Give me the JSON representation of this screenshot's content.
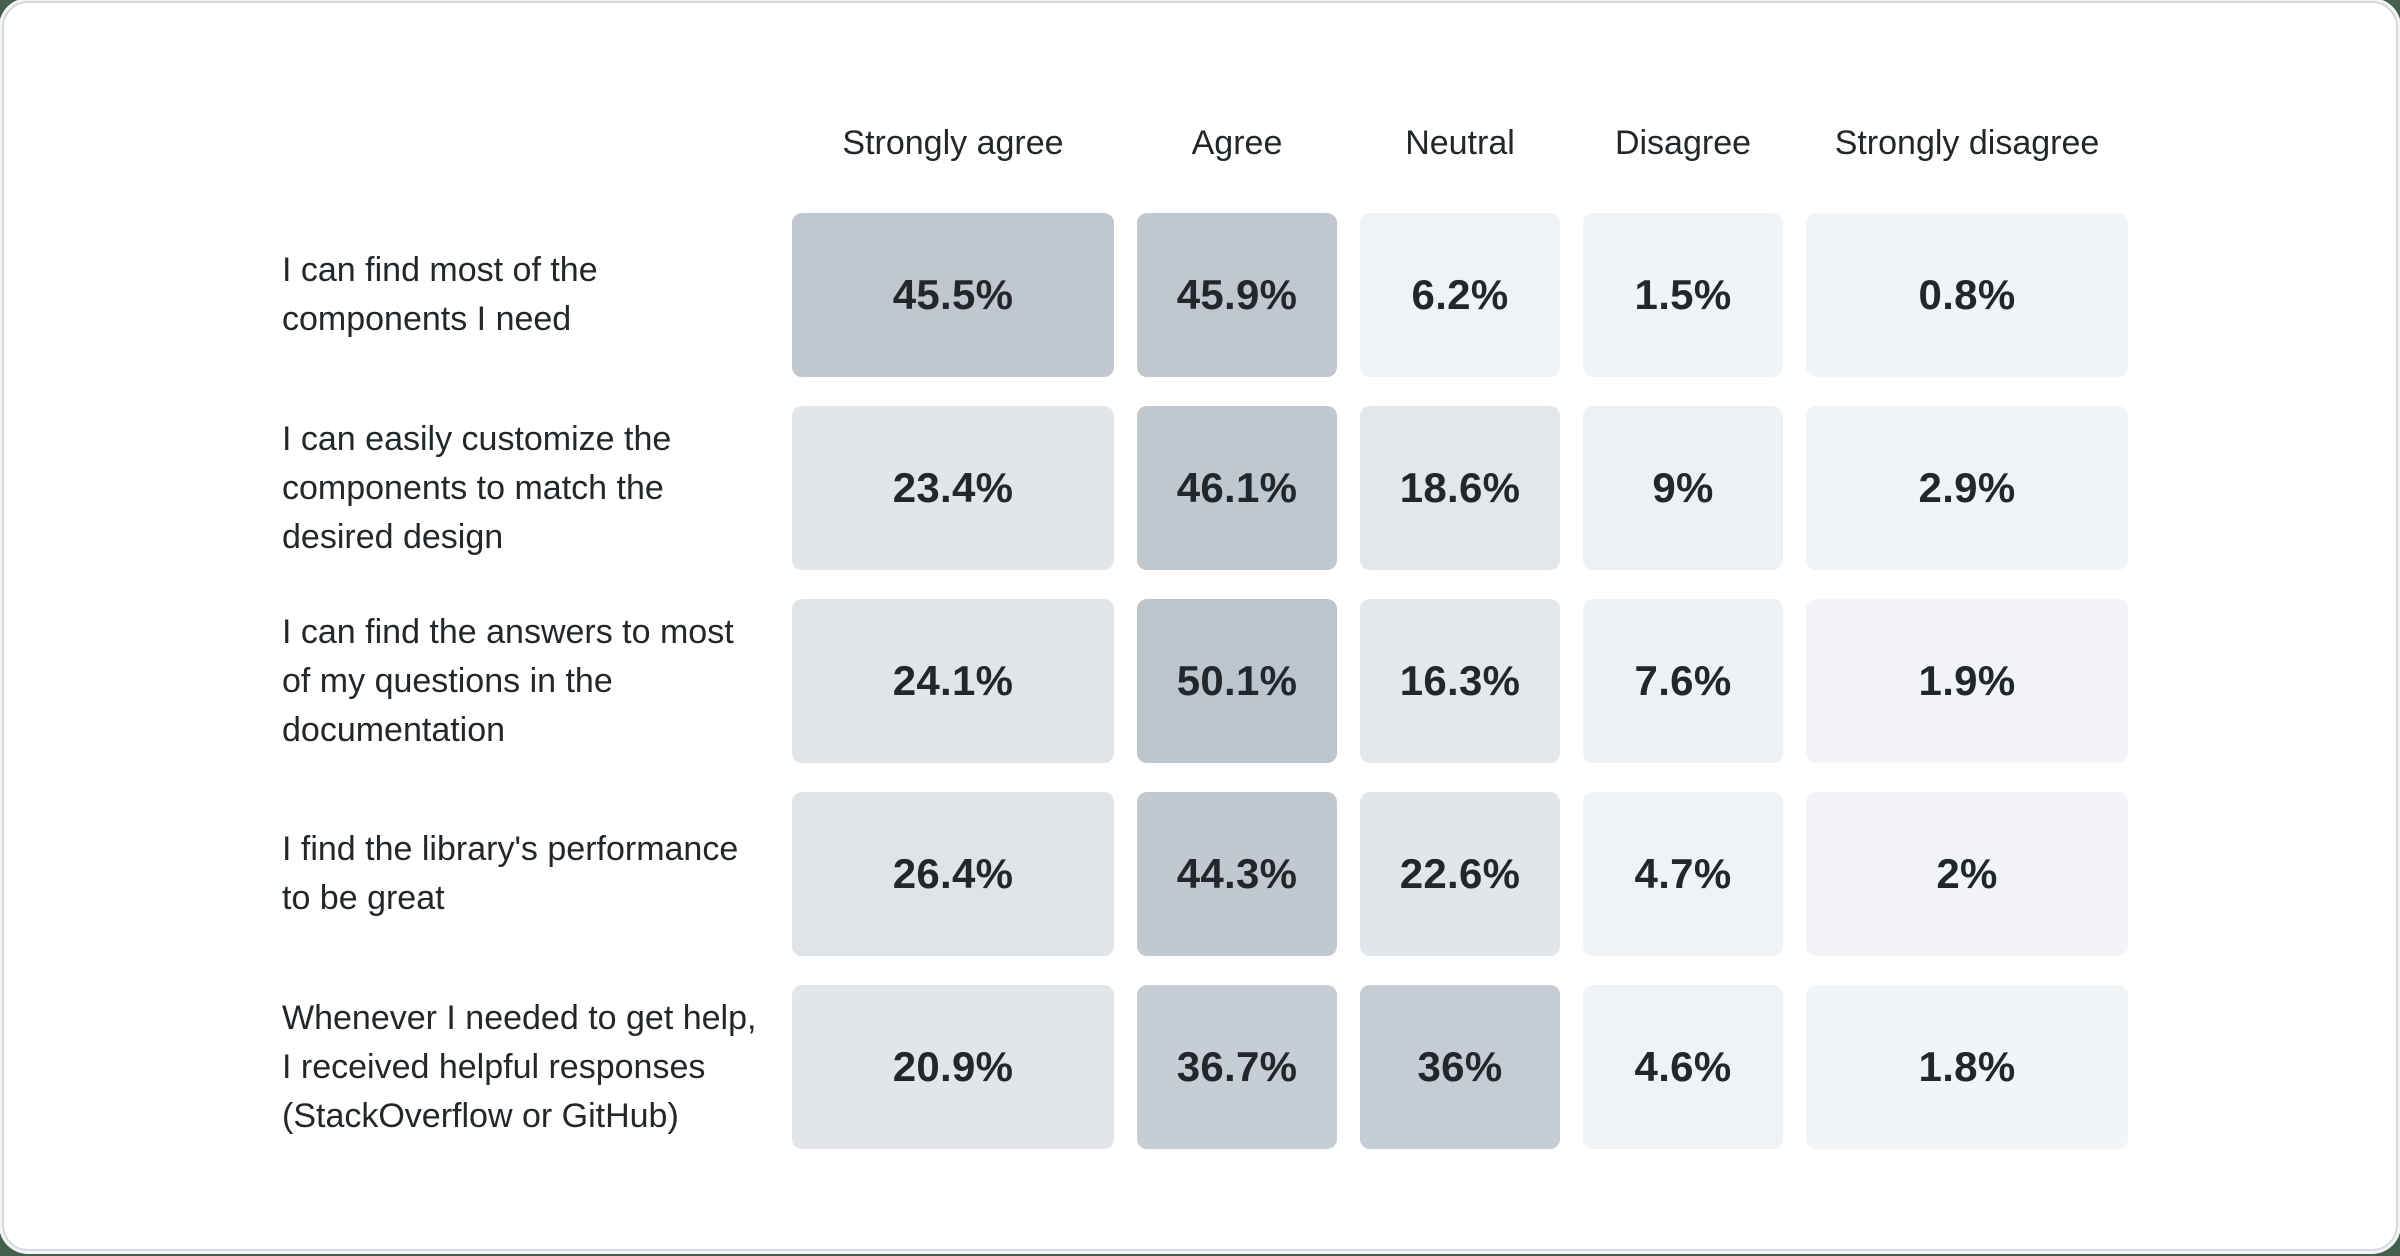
{
  "page": {
    "background_color": "#44604d",
    "card_background": "#ffffff",
    "card_border_color": "#d5d9de",
    "text_color": "#21272a"
  },
  "table": {
    "columns": [
      {
        "label": "Strongly agree"
      },
      {
        "label": "Agree"
      },
      {
        "label": "Neutral"
      },
      {
        "label": "Disagree"
      },
      {
        "label": "Strongly disagree"
      }
    ],
    "rows": [
      {
        "label": "I can find most of the\ncomponents I need",
        "cells": [
          {
            "text": "45.5%",
            "color": "#c0c7cf"
          },
          {
            "text": "45.9%",
            "color": "#c0c7cf"
          },
          {
            "text": "6.2%",
            "color": "#f0f3f6"
          },
          {
            "text": "1.5%",
            "color": "#f1f4f7"
          },
          {
            "text": "0.8%",
            "color": "#f2f5f8"
          }
        ]
      },
      {
        "label": "I can easily customize the\ncomponents to match the\ndesired design",
        "cells": [
          {
            "text": "23.4%",
            "color": "#e1e6ea"
          },
          {
            "text": "46.1%",
            "color": "#bfc7cf"
          },
          {
            "text": "18.6%",
            "color": "#e3e7eb"
          },
          {
            "text": "9%",
            "color": "#edf1f4"
          },
          {
            "text": "2.9%",
            "color": "#f1f4f7"
          }
        ]
      },
      {
        "label": "I can find the answers to most\nof my questions in the\ndocumentation",
        "cells": [
          {
            "text": "24.1%",
            "color": "#e0e5e9"
          },
          {
            "text": "50.1%",
            "color": "#bcc4cd"
          },
          {
            "text": "16.3%",
            "color": "#e4e8ec"
          },
          {
            "text": "7.6%",
            "color": "#eef1f5"
          },
          {
            "text": "1.9%",
            "color": "#f2f4f7"
          }
        ]
      },
      {
        "label": "I find the library's performance\nto be great",
        "cells": [
          {
            "text": "26.4%",
            "color": "#dfe4e8"
          },
          {
            "text": "44.3%",
            "color": "#c1c8d0"
          },
          {
            "text": "22.6%",
            "color": "#e1e6ea"
          },
          {
            "text": "4.7%",
            "color": "#f0f3f6"
          },
          {
            "text": "2%",
            "color": "#f2f4f7"
          }
        ]
      },
      {
        "label": "Whenever I needed to get help,\nI received helpful responses\n(StackOverflow or GitHub)",
        "cells": [
          {
            "text": "20.9%",
            "color": "#e2e6eb"
          },
          {
            "text": "36.7%",
            "color": "#c6cdd5"
          },
          {
            "text": "36%",
            "color": "#c5ccd4"
          },
          {
            "text": "4.6%",
            "color": "#f0f3f6"
          },
          {
            "text": "1.8%",
            "color": "#f2f5f8"
          }
        ]
      }
    ]
  },
  "chart_data": {
    "type": "heatmap",
    "columns": [
      "Strongly agree",
      "Agree",
      "Neutral",
      "Disagree",
      "Strongly disagree"
    ],
    "rows": [
      "I can find most of the components I need",
      "I can easily customize the components to match the desired design",
      "I can find the answers to most of my questions in the documentation",
      "I find the library's performance to be great",
      "Whenever I needed to get help, I received helpful responses (StackOverflow or GitHub)"
    ],
    "values": [
      [
        45.5,
        45.9,
        6.2,
        1.5,
        0.8
      ],
      [
        23.4,
        46.1,
        18.6,
        9,
        2.9
      ],
      [
        24.1,
        50.1,
        16.3,
        7.6,
        1.9
      ],
      [
        26.4,
        44.3,
        22.6,
        4.7,
        2
      ],
      [
        20.9,
        36.7,
        36,
        4.6,
        1.8
      ]
    ],
    "unit": "%",
    "value_range": [
      0,
      50.1
    ],
    "color_scale": {
      "low": "#f2f5f8",
      "high": "#bcc4cd"
    },
    "legend": "none",
    "grid": "off"
  }
}
